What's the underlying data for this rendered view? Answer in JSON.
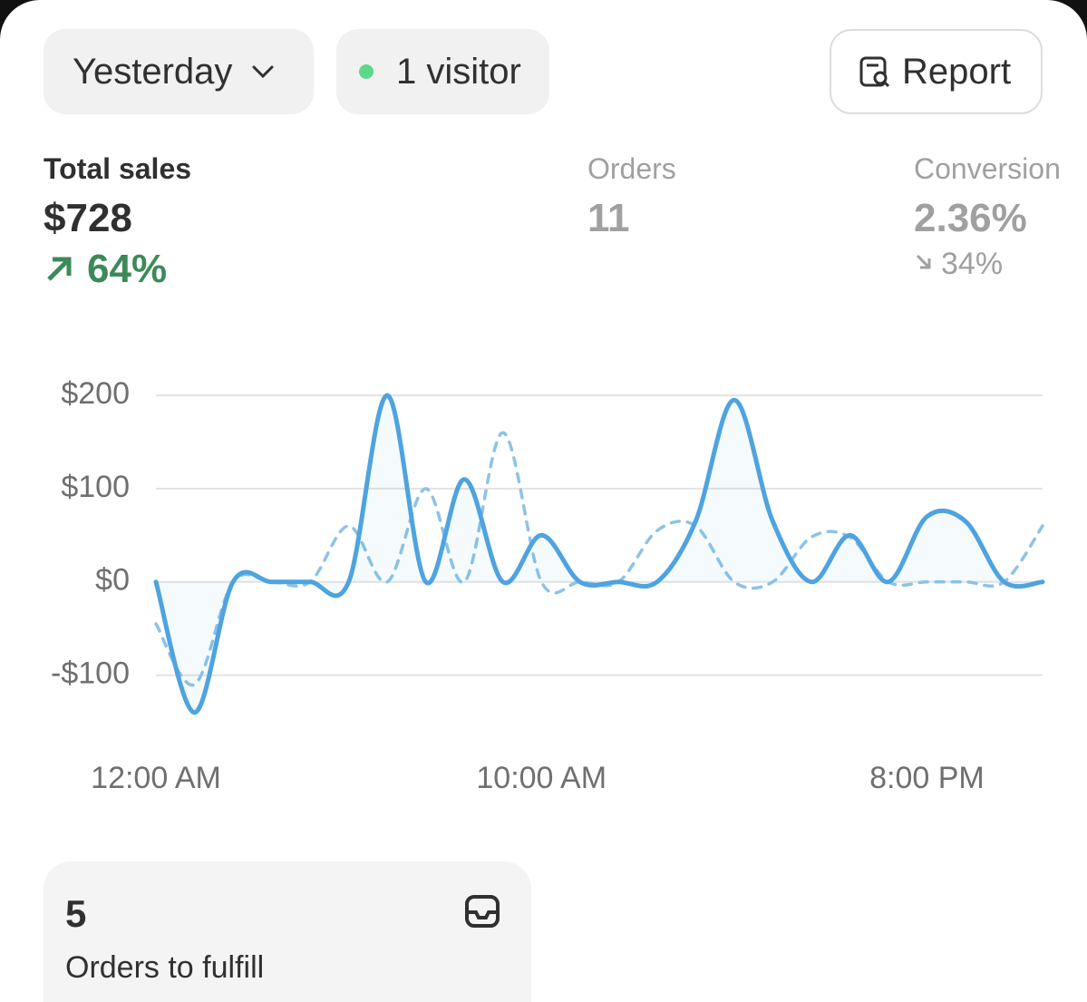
{
  "toolbar": {
    "period": "Yesterday",
    "visitors": "1 visitor",
    "report": "Report"
  },
  "metrics": [
    {
      "label": "Total sales",
      "value": "$728",
      "change": "64%"
    },
    {
      "label": "Orders",
      "value": "11"
    },
    {
      "label": "Conversion",
      "value": "2.36%",
      "change": "34%"
    }
  ],
  "card": {
    "count": "5",
    "label": "Orders to fulfill"
  },
  "chart_data": {
    "type": "line",
    "categories": [
      "12:00 AM",
      null,
      null,
      null,
      null,
      null,
      null,
      null,
      null,
      null,
      "10:00 AM",
      null,
      null,
      null,
      null,
      null,
      null,
      null,
      null,
      null,
      "8:00 PM",
      null,
      null,
      null
    ],
    "series": [
      {
        "color": "#4ea3e0",
        "style": "solid",
        "values": [
          0,
          -140,
          0,
          0,
          0,
          0,
          200,
          0,
          110,
          0,
          50,
          0,
          0,
          0,
          65,
          195,
          65,
          0,
          50,
          0,
          70,
          65,
          0,
          0
        ]
      },
      {
        "color": "#8cc3e8",
        "style": "dashed",
        "values": [
          -45,
          -110,
          0,
          0,
          0,
          60,
          0,
          100,
          0,
          160,
          0,
          0,
          0,
          55,
          60,
          0,
          0,
          48,
          48,
          0,
          0,
          0,
          0,
          60
        ]
      }
    ],
    "ylim": [
      -150,
      200
    ],
    "yticks": [
      {
        "value": -100,
        "label": "-$100"
      },
      {
        "value": 0,
        "label": "$0"
      },
      {
        "value": 100,
        "label": "$100"
      },
      {
        "value": 200,
        "label": "$200"
      }
    ],
    "grid": true
  }
}
